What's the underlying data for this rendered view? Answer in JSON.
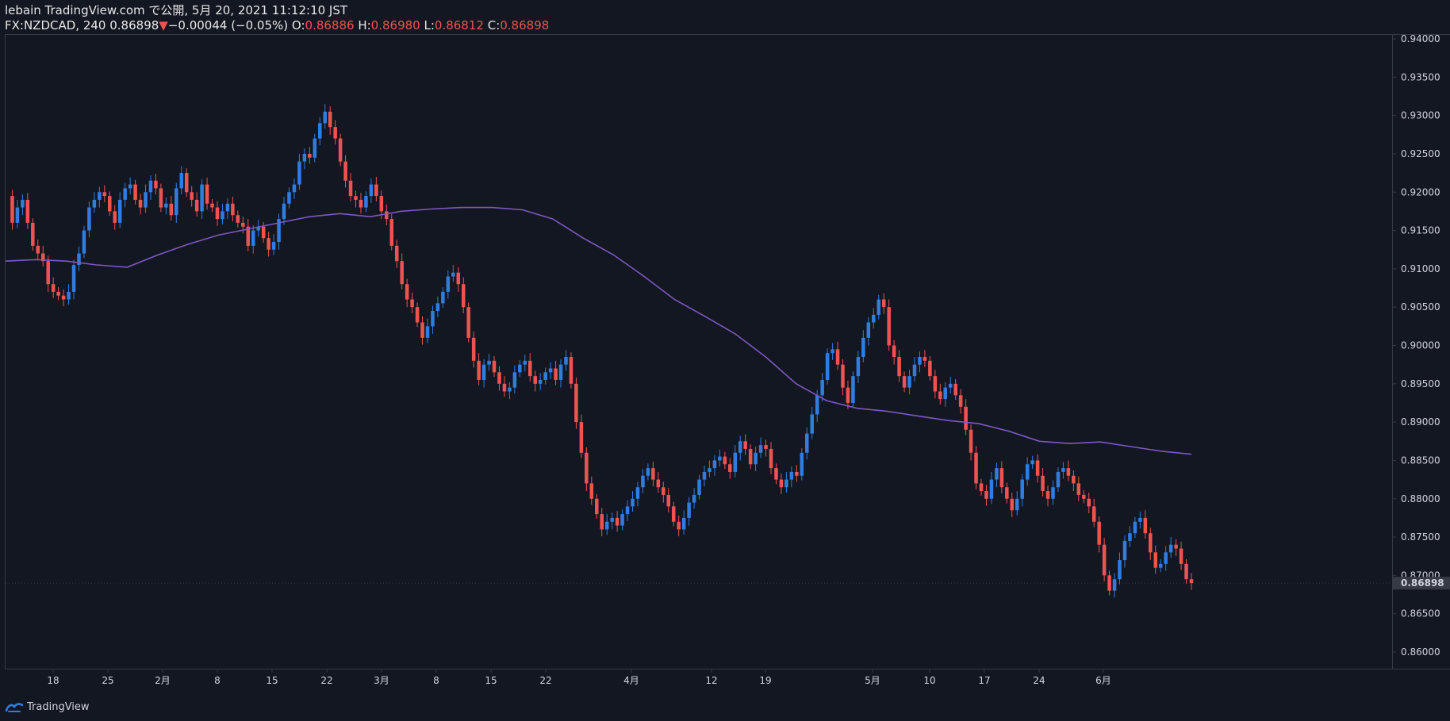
{
  "header": {
    "publisher": "lebain TradingView.com で公開, 5月 20, 2021 11:12:10 JST",
    "symbol": "FX:NZDCAD, 240",
    "last": "0.86898",
    "change_arrow": "▼",
    "change": "−0.00044 (−0.05%)",
    "open_label": "O:",
    "open": "0.86886",
    "high_label": "H:",
    "high": "0.86980",
    "low_label": "L:",
    "low": "0.86812",
    "close_label": "C:",
    "close": "0.86898"
  },
  "footer": {
    "brand": "TradingView",
    "logo_icon": "tradingview-logo-icon"
  },
  "colors": {
    "background": "#131722",
    "up": "#2f7de1",
    "down": "#ef5350",
    "ma": "#7e57c2",
    "axis_text": "#d1d4dc",
    "border": "#363a45",
    "current_price_bg": "#363a45"
  },
  "chart_data": {
    "type": "candlestick",
    "symbol": "FX:NZDCAD",
    "interval": "240",
    "ylim": [
      0.86,
      0.94
    ],
    "y_ticks": [
      "0.94000",
      "0.93500",
      "0.93000",
      "0.92500",
      "0.92000",
      "0.91500",
      "0.91000",
      "0.90500",
      "0.90000",
      "0.89500",
      "0.89000",
      "0.88500",
      "0.88000",
      "0.87500",
      "0.87000",
      "0.86500",
      "0.86000"
    ],
    "x_ticks": [
      "18",
      "25",
      "2月",
      "8",
      "15",
      "22",
      "3月",
      "8",
      "15",
      "22",
      "4月",
      "12",
      "19",
      "5月",
      "10",
      "17",
      "24",
      "6月"
    ],
    "current_price_label": "0.86898",
    "close_path": [
      0.9195,
      0.916,
      0.918,
      0.919,
      0.916,
      0.913,
      0.912,
      0.911,
      0.908,
      0.907,
      0.9065,
      0.906,
      0.907,
      0.9105,
      0.912,
      0.915,
      0.918,
      0.919,
      0.92,
      0.9195,
      0.9175,
      0.916,
      0.919,
      0.9205,
      0.921,
      0.919,
      0.918,
      0.92,
      0.9215,
      0.9205,
      0.918,
      0.9185,
      0.917,
      0.9205,
      0.9225,
      0.92,
      0.919,
      0.9175,
      0.921,
      0.9185,
      0.918,
      0.9165,
      0.9175,
      0.9185,
      0.917,
      0.916,
      0.9155,
      0.913,
      0.915,
      0.9155,
      0.914,
      0.9125,
      0.9135,
      0.9165,
      0.9185,
      0.92,
      0.921,
      0.924,
      0.925,
      0.9245,
      0.927,
      0.929,
      0.9305,
      0.9285,
      0.927,
      0.924,
      0.9215,
      0.9195,
      0.919,
      0.918,
      0.9195,
      0.921,
      0.9195,
      0.9175,
      0.9165,
      0.913,
      0.911,
      0.908,
      0.906,
      0.905,
      0.903,
      0.901,
      0.9025,
      0.9045,
      0.9055,
      0.907,
      0.909,
      0.9095,
      0.908,
      0.905,
      0.901,
      0.898,
      0.8955,
      0.8975,
      0.898,
      0.8965,
      0.895,
      0.894,
      0.8945,
      0.8965,
      0.8975,
      0.898,
      0.896,
      0.895,
      0.8955,
      0.8965,
      0.897,
      0.8955,
      0.8975,
      0.8985,
      0.895,
      0.89,
      0.886,
      0.882,
      0.88,
      0.878,
      0.876,
      0.877,
      0.8775,
      0.8765,
      0.878,
      0.879,
      0.88,
      0.8815,
      0.883,
      0.884,
      0.8825,
      0.8815,
      0.8805,
      0.879,
      0.877,
      0.876,
      0.8775,
      0.8795,
      0.8805,
      0.8825,
      0.8835,
      0.884,
      0.885,
      0.8855,
      0.8845,
      0.8835,
      0.886,
      0.8875,
      0.8865,
      0.8845,
      0.886,
      0.887,
      0.8865,
      0.884,
      0.8825,
      0.8815,
      0.8825,
      0.8835,
      0.883,
      0.886,
      0.8885,
      0.891,
      0.8935,
      0.8955,
      0.899,
      0.8995,
      0.8975,
      0.8945,
      0.8925,
      0.896,
      0.8985,
      0.901,
      0.903,
      0.904,
      0.906,
      0.905,
      0.9,
      0.8985,
      0.896,
      0.8945,
      0.896,
      0.8975,
      0.8985,
      0.898,
      0.896,
      0.894,
      0.893,
      0.8945,
      0.895,
      0.8935,
      0.892,
      0.889,
      0.886,
      0.882,
      0.881,
      0.88,
      0.8825,
      0.884,
      0.8815,
      0.88,
      0.8785,
      0.88,
      0.8825,
      0.8845,
      0.885,
      0.883,
      0.881,
      0.88,
      0.8815,
      0.8835,
      0.884,
      0.883,
      0.882,
      0.8805,
      0.88,
      0.879,
      0.877,
      0.874,
      0.87,
      0.868,
      0.8695,
      0.872,
      0.8745,
      0.8755,
      0.877,
      0.8775,
      0.8755,
      0.873,
      0.871,
      0.8715,
      0.873,
      0.874,
      0.8735,
      0.8715,
      0.8695,
      0.869
    ],
    "ma_path": [
      0.911,
      0.9112,
      0.911,
      0.9105,
      0.9102,
      0.9118,
      0.9132,
      0.9144,
      0.9152,
      0.916,
      0.9168,
      0.9172,
      0.9168,
      0.9175,
      0.9178,
      0.918,
      0.918,
      0.9177,
      0.9165,
      0.914,
      0.9118,
      0.909,
      0.906,
      0.9038,
      0.9015,
      0.8985,
      0.895,
      0.8928,
      0.8918,
      0.8914,
      0.8908,
      0.8902,
      0.8898,
      0.8888,
      0.8875,
      0.8872,
      0.8874,
      0.8868,
      0.8862,
      0.8858
    ],
    "x_start": "2021-01-13",
    "x_end": "2021-05-20"
  }
}
